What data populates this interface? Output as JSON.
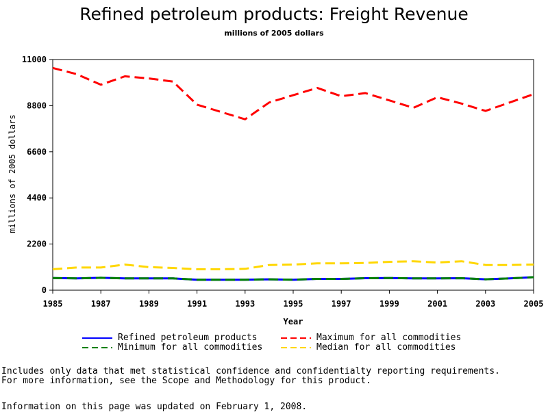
{
  "chart_data": {
    "type": "line",
    "title": "Refined petroleum products: Freight Revenue",
    "subtitle": "millions of 2005 dollars",
    "xlabel": "Year",
    "ylabel": "millions of 2005 dollars",
    "xlim": [
      1985,
      2005
    ],
    "ylim": [
      0,
      11000
    ],
    "x_ticks": [
      "1985",
      "1987",
      "1989",
      "1991",
      "1993",
      "1995",
      "1997",
      "1999",
      "2001",
      "2003",
      "2005"
    ],
    "y_ticks": [
      "0",
      "2200",
      "4400",
      "6600",
      "8800",
      "11000"
    ],
    "x": [
      1985,
      1986,
      1987,
      1988,
      1989,
      1990,
      1991,
      1992,
      1993,
      1994,
      1995,
      1996,
      1997,
      1998,
      1999,
      2000,
      2001,
      2002,
      2003,
      2004,
      2005
    ],
    "series": [
      {
        "name": "Maximum for all commodities",
        "color": "#ff0000",
        "style": "dashed",
        "values": [
          10600,
          10300,
          9800,
          10200,
          10100,
          9950,
          8850,
          8500,
          8150,
          8950,
          9300,
          9650,
          9250,
          9400,
          9050,
          8700,
          9200,
          8900,
          8550,
          8950,
          9350
        ]
      },
      {
        "name": "Median for all commodities",
        "color": "#ffd700",
        "style": "dashed",
        "values": [
          1000,
          1080,
          1080,
          1220,
          1100,
          1060,
          1000,
          1000,
          1020,
          1200,
          1220,
          1280,
          1280,
          1300,
          1350,
          1380,
          1320,
          1380,
          1200,
          1200,
          1220
        ]
      },
      {
        "name": "Refined petroleum products",
        "color": "#0000ff",
        "style": "solid",
        "values": [
          580,
          560,
          590,
          560,
          560,
          560,
          500,
          500,
          500,
          520,
          500,
          540,
          540,
          570,
          580,
          560,
          560,
          570,
          520,
          560,
          620
        ]
      },
      {
        "name": "Minimum for all commodities",
        "color": "#008000",
        "style": "dashed",
        "values": [
          580,
          560,
          590,
          560,
          560,
          560,
          500,
          500,
          500,
          520,
          500,
          540,
          540,
          570,
          580,
          560,
          560,
          570,
          520,
          560,
          620
        ]
      }
    ],
    "legend": [
      {
        "label": "Refined petroleum products",
        "color": "#0000ff",
        "style": "solid"
      },
      {
        "label": "Maximum for all commodities",
        "color": "#ff0000",
        "style": "dashed"
      },
      {
        "label": "Minimum for all commodities",
        "color": "#008000",
        "style": "dashed"
      },
      {
        "label": "Median for all commodities",
        "color": "#ffd700",
        "style": "dashed"
      }
    ],
    "legend_placement": "bottom",
    "grid": false
  },
  "notes": {
    "line1": "Includes only data that met statistical confidence and confidentialty reporting requirements.",
    "line2": "For more information, see the Scope and Methodology for this product.",
    "updated": "Information on this page was updated on February 1, 2008."
  }
}
